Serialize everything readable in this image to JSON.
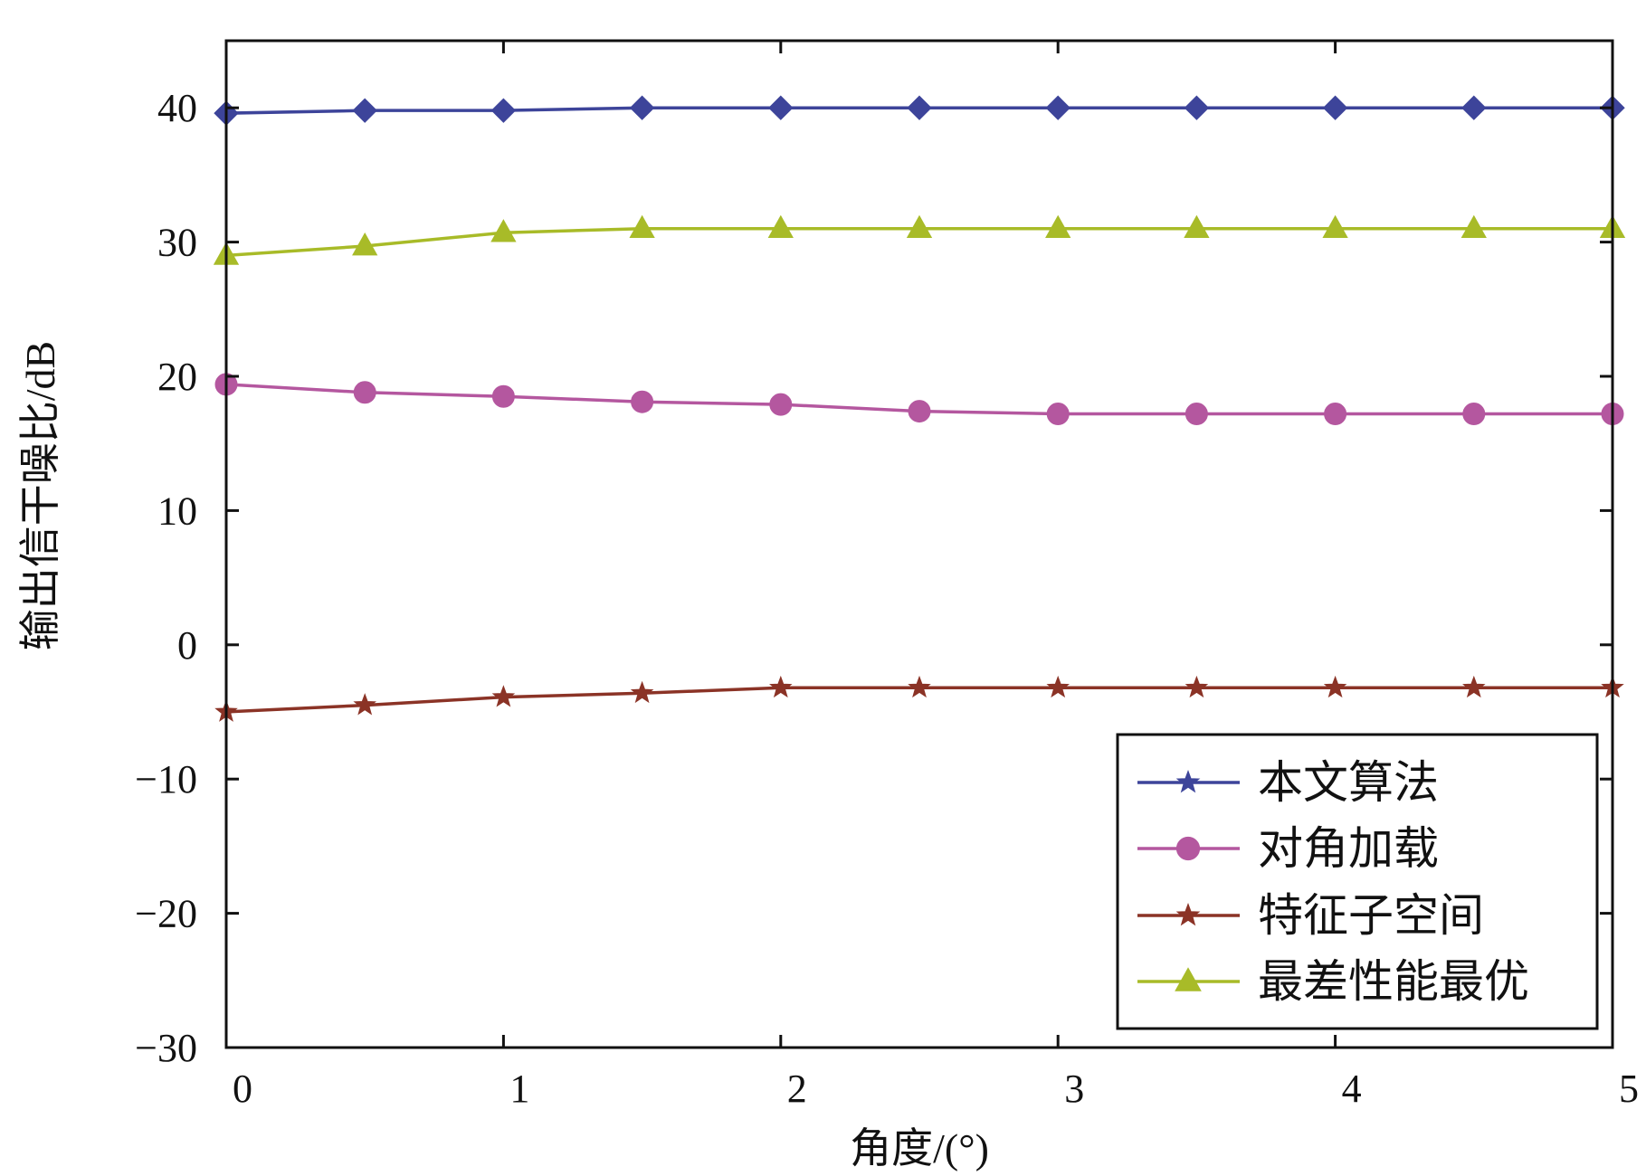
{
  "chart_data": {
    "type": "line",
    "xlabel": "角度/(°)",
    "ylabel": "输出信干噪比/dB",
    "xlim": [
      0,
      5
    ],
    "ylim": [
      -30,
      45
    ],
    "x_ticks": [
      0,
      1,
      2,
      3,
      4,
      5
    ],
    "x_tick_labels": [
      "0",
      "1",
      "2",
      "3",
      "4",
      "5"
    ],
    "y_ticks": [
      -30,
      -20,
      -10,
      0,
      10,
      20,
      30,
      40
    ],
    "y_tick_labels": [
      "−30",
      "−20",
      "−10",
      "0",
      "10",
      "20",
      "30",
      "40"
    ],
    "grid": false,
    "legend_position": "bottom-right",
    "x": [
      0,
      0.5,
      1,
      1.5,
      2,
      2.5,
      3,
      3.5,
      4,
      4.5,
      5
    ],
    "series": [
      {
        "name": "本文算法",
        "color": "#3d449a",
        "marker": "diamond",
        "legend_marker": "star",
        "values": [
          39.6,
          39.8,
          39.8,
          40.0,
          40.0,
          40.0,
          40.0,
          40.0,
          40.0,
          40.0,
          40.0
        ]
      },
      {
        "name": "对角加载",
        "color": "#b4579f",
        "marker": "circle",
        "legend_marker": "circle",
        "values": [
          19.4,
          18.8,
          18.5,
          18.1,
          17.9,
          17.4,
          17.2,
          17.2,
          17.2,
          17.2,
          17.2
        ]
      },
      {
        "name": "特征子空间",
        "color": "#8b3326",
        "marker": "star",
        "legend_marker": "star",
        "values": [
          -5.0,
          -4.5,
          -3.9,
          -3.6,
          -3.2,
          -3.2,
          -3.2,
          -3.2,
          -3.2,
          -3.2,
          -3.2
        ]
      },
      {
        "name": "最差性能最优",
        "color": "#a8bb28",
        "marker": "triangle",
        "legend_marker": "triangle",
        "values": [
          29.0,
          29.7,
          30.7,
          31.0,
          31.0,
          31.0,
          31.0,
          31.0,
          31.0,
          31.0,
          31.0
        ]
      }
    ]
  }
}
